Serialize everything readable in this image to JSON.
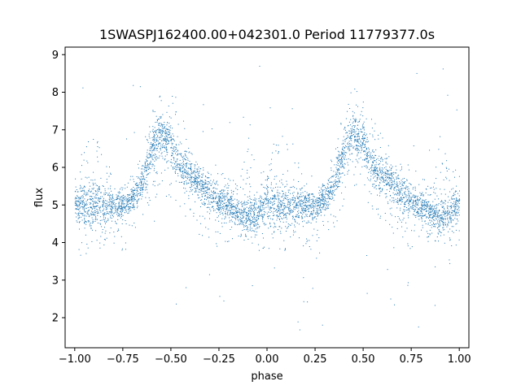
{
  "chart_data": {
    "type": "scatter",
    "title": "1SWASPJ162400.00+042301.0 Period 11779377.0s",
    "xlabel": "phase",
    "ylabel": "flux",
    "xlim": [
      -1.05,
      1.05
    ],
    "ylim": [
      1.2,
      9.2
    ],
    "x_ticks": [
      -1.0,
      -0.75,
      -0.5,
      -0.25,
      0.0,
      0.25,
      0.5,
      0.75,
      1.0
    ],
    "x_tick_labels": [
      "−1.00",
      "−0.75",
      "−0.50",
      "−0.25",
      "0.00",
      "0.25",
      "0.50",
      "0.75",
      "1.00"
    ],
    "y_ticks": [
      2,
      3,
      4,
      5,
      6,
      7,
      8,
      9
    ],
    "y_tick_labels": [
      "2",
      "3",
      "4",
      "5",
      "6",
      "7",
      "8",
      "9"
    ],
    "grid": false,
    "marker_color": "#1f77b4",
    "series": [
      {
        "points_per_cycle_phase": "phase-folded light curve plotted twice (phase −1 to 1)",
        "profile": [
          {
            "phase": -1.0,
            "median": 5.1,
            "low": 3.8,
            "high": 6.0
          },
          {
            "phase": -0.95,
            "median": 5.0,
            "low": 3.7,
            "high": 7.0
          },
          {
            "phase": -0.9,
            "median": 5.0,
            "low": 3.8,
            "high": 6.8
          },
          {
            "phase": -0.85,
            "median": 5.0,
            "low": 3.8,
            "high": 6.6
          },
          {
            "phase": -0.8,
            "median": 5.0,
            "low": 3.9,
            "high": 5.6
          },
          {
            "phase": -0.75,
            "median": 5.0,
            "low": 3.5,
            "high": 5.5
          },
          {
            "phase": -0.7,
            "median": 5.2,
            "low": 4.3,
            "high": 5.9
          },
          {
            "phase": -0.65,
            "median": 5.6,
            "low": 4.4,
            "high": 6.6
          },
          {
            "phase": -0.6,
            "median": 6.5,
            "low": 5.0,
            "high": 7.6
          },
          {
            "phase": -0.55,
            "median": 7.0,
            "low": 5.5,
            "high": 8.2
          },
          {
            "phase": -0.5,
            "median": 6.6,
            "low": 5.2,
            "high": 8.0
          },
          {
            "phase": -0.45,
            "median": 6.0,
            "low": 4.8,
            "high": 7.5
          },
          {
            "phase": -0.4,
            "median": 5.8,
            "low": 4.5,
            "high": 6.8
          },
          {
            "phase": -0.35,
            "median": 5.6,
            "low": 4.2,
            "high": 6.4
          },
          {
            "phase": -0.3,
            "median": 5.3,
            "low": 4.0,
            "high": 6.3
          },
          {
            "phase": -0.25,
            "median": 5.1,
            "low": 3.8,
            "high": 6.0
          },
          {
            "phase": -0.2,
            "median": 5.0,
            "low": 4.0,
            "high": 5.8
          },
          {
            "phase": -0.15,
            "median": 4.8,
            "low": 4.0,
            "high": 5.5
          },
          {
            "phase": -0.1,
            "median": 4.7,
            "low": 4.0,
            "high": 6.9
          },
          {
            "phase": -0.05,
            "median": 4.8,
            "low": 3.8,
            "high": 5.9
          },
          {
            "phase": 0.0,
            "median": 5.1,
            "low": 3.8,
            "high": 6.0
          },
          {
            "phase": 0.05,
            "median": 5.0,
            "low": 3.7,
            "high": 7.0
          },
          {
            "phase": 0.1,
            "median": 5.0,
            "low": 3.8,
            "high": 6.8
          },
          {
            "phase": 0.15,
            "median": 5.0,
            "low": 3.8,
            "high": 6.6
          },
          {
            "phase": 0.2,
            "median": 5.0,
            "low": 3.9,
            "high": 5.6
          },
          {
            "phase": 0.25,
            "median": 5.0,
            "low": 3.5,
            "high": 5.5
          },
          {
            "phase": 0.3,
            "median": 5.2,
            "low": 4.3,
            "high": 5.9
          },
          {
            "phase": 0.35,
            "median": 5.6,
            "low": 4.4,
            "high": 6.6
          },
          {
            "phase": 0.4,
            "median": 6.5,
            "low": 5.0,
            "high": 7.6
          },
          {
            "phase": 0.45,
            "median": 7.0,
            "low": 5.5,
            "high": 8.2
          },
          {
            "phase": 0.5,
            "median": 6.6,
            "low": 5.2,
            "high": 8.0
          },
          {
            "phase": 0.55,
            "median": 6.0,
            "low": 4.8,
            "high": 7.5
          },
          {
            "phase": 0.6,
            "median": 5.8,
            "low": 4.5,
            "high": 6.8
          },
          {
            "phase": 0.65,
            "median": 5.6,
            "low": 4.2,
            "high": 6.4
          },
          {
            "phase": 0.7,
            "median": 5.3,
            "low": 4.0,
            "high": 6.3
          },
          {
            "phase": 0.75,
            "median": 5.1,
            "low": 3.8,
            "high": 6.0
          },
          {
            "phase": 0.8,
            "median": 5.0,
            "low": 4.0,
            "high": 5.8
          },
          {
            "phase": 0.85,
            "median": 4.8,
            "low": 4.0,
            "high": 5.5
          },
          {
            "phase": 0.9,
            "median": 4.7,
            "low": 4.0,
            "high": 6.9
          },
          {
            "phase": 0.95,
            "median": 4.8,
            "low": 3.8,
            "high": 5.9
          },
          {
            "phase": 1.0,
            "median": 5.1,
            "low": 3.8,
            "high": 6.0
          }
        ],
        "outlier_range": [
          1.6,
          8.9
        ]
      }
    ]
  }
}
